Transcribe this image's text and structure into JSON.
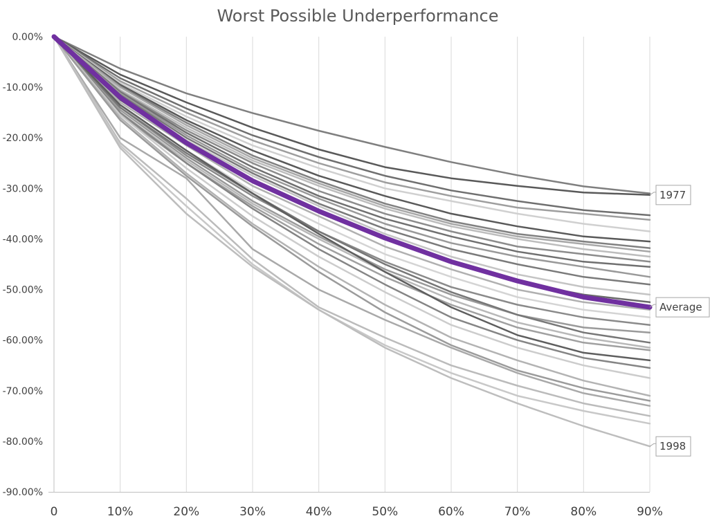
{
  "chart_data": {
    "type": "line",
    "title": "Worst Possible Underperformance",
    "xlabel": "",
    "ylabel": "",
    "x": [
      "0",
      "10%",
      "20%",
      "30%",
      "40%",
      "50%",
      "60%",
      "70%",
      "80%",
      "90%"
    ],
    "y_ticks": [
      "0.00%",
      "-10.00%",
      "-20.00%",
      "-30.00%",
      "-40.00%",
      "-50.00%",
      "-60.00%",
      "-70.00%",
      "-80.00%",
      "-90.00%"
    ],
    "ylim": [
      -90,
      0
    ],
    "grid": "vertical",
    "series": [
      {
        "values": [
          0,
          -6.3,
          -11.2,
          -15.1,
          -18.6,
          -21.8,
          -24.8,
          -27.4,
          -29.6,
          -31.0
        ],
        "color": "#7f7f7f"
      },
      {
        "name": "1977",
        "values": [
          0,
          -7.5,
          -13.0,
          -18.0,
          -22.3,
          -25.8,
          -28.0,
          -29.5,
          -30.8,
          -31.3
        ],
        "color": "#595959"
      },
      {
        "values": [
          0,
          -8.2,
          -14.2,
          -19.5,
          -23.8,
          -27.5,
          -30.4,
          -32.5,
          -34.3,
          -35.3
        ],
        "color": "#6f6f6f"
      },
      {
        "values": [
          0,
          -8.8,
          -15.0,
          -20.5,
          -25.0,
          -28.8,
          -31.5,
          -33.8,
          -35.0,
          -36.2
        ],
        "color": "#9e9e9e"
      },
      {
        "values": [
          0,
          -9.2,
          -15.8,
          -21.5,
          -26.0,
          -30.0,
          -32.5,
          -35.0,
          -37.0,
          -38.5
        ],
        "color": "#d0d0d0"
      },
      {
        "values": [
          0,
          -9.5,
          -16.5,
          -22.5,
          -27.5,
          -31.5,
          -35.0,
          -37.5,
          -39.5,
          -40.5
        ],
        "color": "#595959"
      },
      {
        "values": [
          0,
          -9.8,
          -17.0,
          -23.5,
          -28.5,
          -33.0,
          -36.5,
          -39.0,
          -40.5,
          -41.8
        ],
        "color": "#808080"
      },
      {
        "values": [
          0,
          -10.0,
          -17.5,
          -24.0,
          -29.0,
          -33.5,
          -37.0,
          -39.5,
          -41.0,
          -42.5
        ],
        "color": "#a8a8a8"
      },
      {
        "values": [
          0,
          -10.5,
          -18.0,
          -24.5,
          -29.5,
          -34.0,
          -37.5,
          -40.0,
          -42.0,
          -43.5
        ],
        "color": "#bdbdbd"
      },
      {
        "values": [
          0,
          -10.8,
          -18.5,
          -25.0,
          -30.5,
          -35.0,
          -38.5,
          -41.5,
          -43.0,
          -44.5
        ],
        "color": "#8c8c8c"
      },
      {
        "values": [
          0,
          -11.0,
          -19.0,
          -25.8,
          -31.5,
          -36.0,
          -39.5,
          -42.5,
          -44.5,
          -45.5
        ],
        "color": "#707070"
      },
      {
        "values": [
          0,
          -11.2,
          -19.5,
          -26.5,
          -32.0,
          -37.0,
          -40.8,
          -43.5,
          -45.5,
          -47.5
        ],
        "color": "#999999"
      },
      {
        "values": [
          0,
          -11.5,
          -20.0,
          -27.0,
          -33.0,
          -38.0,
          -42.0,
          -45.0,
          -47.5,
          -49.0
        ],
        "color": "#7a7a7a"
      },
      {
        "values": [
          0,
          -12.0,
          -20.5,
          -27.5,
          -33.5,
          -39.0,
          -43.5,
          -47.0,
          -49.5,
          -51.0
        ],
        "color": "#c4c4c4"
      },
      {
        "values": [
          0,
          -12.5,
          -21.0,
          -28.5,
          -34.5,
          -40.0,
          -44.5,
          -48.5,
          -51.0,
          -52.5
        ],
        "color": "#6a6a6a"
      },
      {
        "values": [
          0,
          -13.0,
          -21.5,
          -29.5,
          -35.5,
          -41.5,
          -46.0,
          -50.0,
          -52.5,
          -54.0
        ],
        "color": "#b0b0b0"
      },
      {
        "values": [
          0,
          -13.5,
          -22.5,
          -30.5,
          -37.0,
          -43.0,
          -47.5,
          -51.5,
          -54.0,
          -55.5
        ],
        "color": "#d4d4d4"
      },
      {
        "values": [
          0,
          -14.0,
          -23.5,
          -31.5,
          -38.5,
          -44.5,
          -49.5,
          -53.0,
          -55.5,
          -57.0
        ],
        "color": "#8a8a8a"
      },
      {
        "values": [
          0,
          -14.5,
          -24.0,
          -32.5,
          -39.5,
          -46.0,
          -51.0,
          -55.0,
          -57.5,
          -58.5
        ],
        "color": "#9a9a9a"
      },
      {
        "values": [
          0,
          -14.0,
          -23.0,
          -31.0,
          -38.5,
          -45.0,
          -50.5,
          -55.0,
          -58.5,
          -60.5
        ],
        "color": "#777777"
      },
      {
        "values": [
          0,
          -15.0,
          -24.5,
          -33.0,
          -40.0,
          -46.5,
          -52.0,
          -56.5,
          -59.5,
          -61.5
        ],
        "color": "#b8b8b8"
      },
      {
        "values": [
          0,
          -15.5,
          -25.0,
          -33.5,
          -41.0,
          -47.5,
          -53.0,
          -57.5,
          -60.5,
          -62.0
        ],
        "color": "#a0a0a0"
      },
      {
        "values": [
          0,
          -13.5,
          -22.5,
          -31.0,
          -39.0,
          -46.5,
          -53.5,
          -59.0,
          -62.5,
          -64.0
        ],
        "color": "#5e5e5e"
      },
      {
        "values": [
          0,
          -15.0,
          -25.0,
          -34.0,
          -42.0,
          -49.0,
          -55.5,
          -60.0,
          -63.5,
          -65.5
        ],
        "color": "#858585"
      },
      {
        "values": [
          0,
          -15.5,
          -26.0,
          -35.5,
          -43.5,
          -50.5,
          -57.0,
          -61.5,
          -65.0,
          -67.5
        ],
        "color": "#cccccc"
      },
      {
        "values": [
          0,
          -16.0,
          -27.0,
          -37.0,
          -45.5,
          -53.0,
          -59.5,
          -64.0,
          -68.0,
          -71.0
        ],
        "color": "#b3b3b3"
      },
      {
        "values": [
          0,
          -16.5,
          -27.5,
          -37.5,
          -46.5,
          -54.5,
          -61.0,
          -66.0,
          -69.5,
          -72.0
        ],
        "color": "#9b9b9b"
      },
      {
        "values": [
          0,
          -20.0,
          -28.0,
          -42.0,
          -50.0,
          -56.0,
          -61.5,
          -66.5,
          -70.5,
          -73.0
        ],
        "color": "#a9a9a9"
      },
      {
        "values": [
          0,
          -21.0,
          -32.0,
          -44.0,
          -53.5,
          -59.5,
          -65.0,
          -69.0,
          -72.5,
          -75.0
        ],
        "color": "#bbbbbb"
      },
      {
        "values": [
          0,
          -21.5,
          -33.5,
          -45.0,
          -54.0,
          -61.0,
          -66.5,
          -71.0,
          -74.0,
          -76.5
        ],
        "color": "#c8c8c8"
      },
      {
        "name": "1998",
        "values": [
          0,
          -22.0,
          -35.0,
          -45.5,
          -54.0,
          -61.5,
          -67.5,
          -72.5,
          -77.0,
          -81.0
        ],
        "color": "#bdbdbd"
      },
      {
        "name": "Average",
        "values": [
          0,
          -12.0,
          -21.0,
          -28.5,
          -34.5,
          -39.8,
          -44.5,
          -48.3,
          -51.5,
          -53.5
        ],
        "color": "#7030a0",
        "emphasis": true
      }
    ],
    "callouts": [
      {
        "text": "1977",
        "series": "1977",
        "point": 9
      },
      {
        "text": "Average",
        "series": "Average",
        "point": 9
      },
      {
        "text": "1998",
        "series": "1998",
        "point": 9
      }
    ]
  }
}
